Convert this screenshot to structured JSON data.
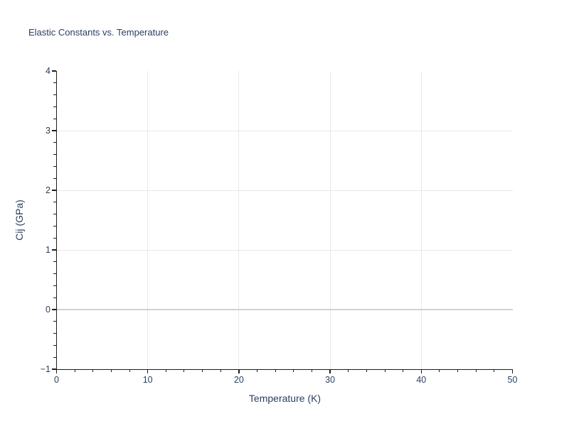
{
  "chart_data": {
    "type": "scatter",
    "title": "Elastic Constants vs. Temperature",
    "xlabel": "Temperature (K)",
    "ylabel": "Cij (GPa)",
    "xlim": [
      0,
      50
    ],
    "ylim": [
      -1,
      4
    ],
    "x_ticks": [
      0,
      10,
      20,
      30,
      40,
      50
    ],
    "y_ticks": [
      -1,
      0,
      1,
      2,
      3,
      4
    ],
    "x_minor_step": 2,
    "x_major_step": 10,
    "y_minor_step": 0.2,
    "y_major_step": 1,
    "x_gridlines": [
      10,
      20,
      30,
      40
    ],
    "y_gridlines": [
      1,
      2,
      3
    ],
    "y_zeroline": 0,
    "grid": true,
    "legend_position": "none",
    "series": [],
    "colors": {
      "text": "#2a3f5f",
      "axis": "#1c1c1c",
      "grid": "#e8e8e8",
      "zeroline": "#d2d2d2",
      "background": "#ffffff"
    }
  }
}
